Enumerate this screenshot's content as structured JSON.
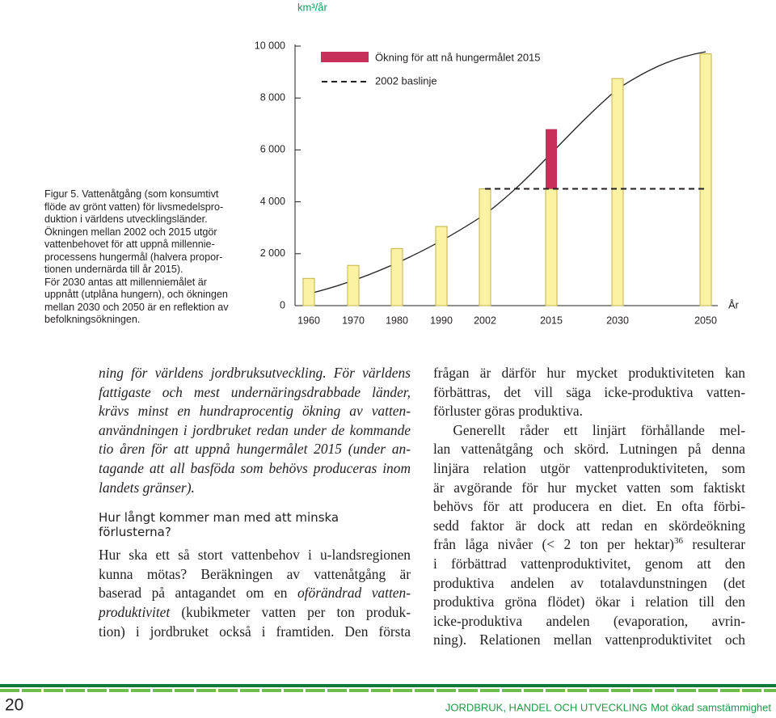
{
  "chart_data": {
    "type": "bar",
    "ylabel": "km³/år",
    "xlabel": "År",
    "categories": [
      "1960",
      "1970",
      "1980",
      "1990",
      "2002",
      "2015",
      "2030",
      "2050"
    ],
    "series": [
      {
        "color": "#fcf2a4",
        "values": [
          1050,
          1550,
          2200,
          3050,
          4500,
          4500,
          8750,
          9700
        ]
      },
      {
        "name": "Ökning för att nå hungermålet 2015",
        "color": "#c6305a",
        "values": [
          null,
          null,
          null,
          null,
          null,
          2300,
          null,
          null
        ]
      },
      {
        "name": "2002 baslinje",
        "color": "#231f20",
        "values": [
          null,
          null,
          null,
          null,
          4500,
          4500,
          4500,
          4500
        ]
      }
    ],
    "ylim": [
      0,
      10000
    ],
    "yticks": [
      0,
      {
        "value": 2000,
        "label": "2 000"
      },
      {
        "value": 4000,
        "label": "4 000"
      },
      {
        "value": 6000,
        "label": "6 000"
      },
      {
        "value": 8000,
        "label": "8 000"
      },
      {
        "value": 10000,
        "label": "10 000"
      }
    ]
  },
  "caption": [
    "Figur 5. Vattenåtgång (som konsumtivt",
    "flöde av grönt vatten) för livsmedelspro-",
    "duktion i världens utvecklingsländer.",
    "Ökningen mellan 2002 och 2015 utgör",
    "vattenbehovet för att uppnå millennie-",
    "processens hungermål (halvera propor-",
    "tionen undernärda till år 2015).",
    "För 2030 antas att millenniemålet är",
    "uppnått (utplåna hungern), och ökningen",
    "mellan 2030 och 2050 är en reflektion av",
    "befolkningsökningen."
  ],
  "left_column": {
    "paragraph_1": [
      "ning för världens jordbruksutveckling. För världens",
      "fattigaste och mest undernäringsdrabbade länder,",
      "krävs minst en hundraprocentig ökning av vatten-",
      "användningen i jordbruket redan under de kommande",
      "tio åren för att uppnå hungermålet 2015 (under an-",
      "tagande att all basföda som behövs produceras inom",
      "landets gränser)."
    ],
    "heading": [
      "Hur långt kommer man med att minska",
      "förlusterna?"
    ],
    "paragraph_2": [
      "Hur ska ett så stort vattenbehov i u-landsregionen",
      "kunna mötas? Beräkningen av vattenåtgång är",
      [
        "baserad på antagandet om en ",
        {
          "em": "oförändrad vatten-"
        }
      ],
      [
        {
          "em": "produktivitet"
        },
        " (kubikmeter vatten per ton produk-"
      ],
      "tion) i jordbruket också i framtiden. Den första"
    ]
  },
  "right_column": {
    "paragraph_1": [
      "frågan är därför hur mycket produktiviteten kan",
      "förbättras, det vill säga icke-produktiva vatten-",
      "förluster göras produktiva."
    ],
    "paragraph_2": [
      "Generellt råder ett linjärt förhållande mel-",
      "lan vattenåtgång och skörd. Lutningen på denna",
      "linjära relation utgör vattenproduktiviteten, som",
      "är avgörande för hur mycket vatten som faktiskt",
      "behövs för att producera en diet. En ofta förbi-",
      "sedd faktor är dock att redan en skördeökning",
      [
        "från låga nivåer (< 2 ton per hektar)",
        {
          "sup": "36"
        },
        " resulterar"
      ],
      "i förbättrad vattenproduktivitet, genom att den",
      "produktiva andelen av totalavdunstningen (det",
      "produktiva gröna flödet) ökar i relation till den",
      "icke-produktiva andelen (evaporation, avrin-",
      "ning). Relationen mellan vattenproduktivitet och"
    ]
  },
  "footer": {
    "page_number": "20",
    "title": "JORDBRUK, HANDEL OCH UTVECKLING",
    "subtitle": "Mot ökad samstämmighet"
  }
}
